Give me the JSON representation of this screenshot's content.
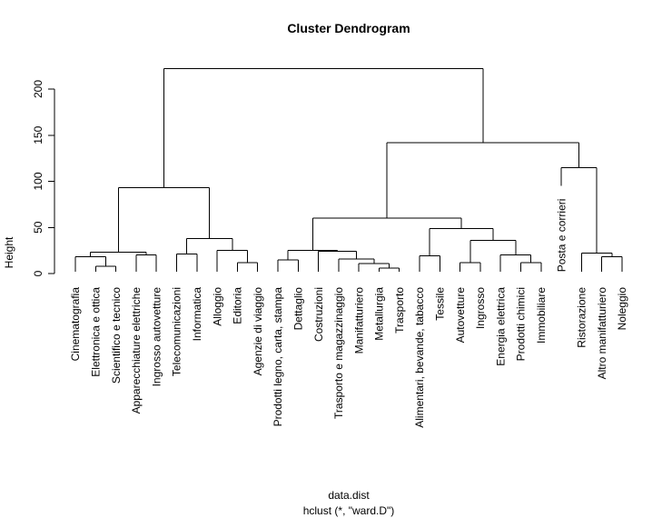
{
  "chart_data": {
    "type": "dendrogram",
    "title": "Cluster Dendrogram",
    "ylabel": "Height",
    "xlabel_lines": [
      "data.dist",
      "hclust (*, \"ward.D\")"
    ],
    "ylim": [
      0,
      230
    ],
    "yticks": [
      0,
      50,
      100,
      150,
      200
    ],
    "leaves": [
      "Cinematografia",
      "Elettronica e ottica",
      "Scientifico e tecnico",
      "Apparecchiature elettriche",
      "Ingrosso autovetture",
      "Telecomunicazioni",
      "Informatica",
      "Alloggio",
      "Editoria",
      "Agenzie di viaggio",
      "Prodotti legno, carta, stampa",
      "Dettaglio",
      "Costruzioni",
      "Trasporto e magazzinaggio",
      "Manifatturiero",
      "Metallurgia",
      "Trasporto",
      "Alimentari, bevande, tabacco",
      "Tessile",
      "Autovetture",
      "Ingrosso",
      "Energia elettrica",
      "Prodotti chimici",
      "Immobiliare",
      "Posta e corrieri",
      "Ristorazione",
      "Altro manifatturiero",
      "Noleggio"
    ],
    "merges": [
      {
        "a": "Scientifico e tecnico",
        "b": "Elettronica e ottica",
        "height": 8,
        "id": "n1"
      },
      {
        "a": "Cinematografia",
        "b": "n1",
        "height": 18,
        "id": "n2"
      },
      {
        "a": "Apparecchiature elettriche",
        "b": "Ingrosso autovetture",
        "height": 20,
        "id": "n3"
      },
      {
        "a": "n2",
        "b": "n3",
        "height": 23,
        "id": "n4"
      },
      {
        "a": "Telecomunicazioni",
        "b": "Informatica",
        "height": 21,
        "id": "n5"
      },
      {
        "a": "Editoria",
        "b": "Agenzie di viaggio",
        "height": 12,
        "id": "n6"
      },
      {
        "a": "Alloggio",
        "b": "n6",
        "height": 25,
        "id": "n7"
      },
      {
        "a": "n5",
        "b": "n7",
        "height": 38,
        "id": "n8"
      },
      {
        "a": "n4",
        "b": "n8",
        "height": 93,
        "id": "n9"
      },
      {
        "a": "Prodotti legno, carta, stampa",
        "b": "Dettaglio",
        "height": 15,
        "id": "n10"
      },
      {
        "a": "Metallurgia",
        "b": "Trasporto",
        "height": 6,
        "id": "n11"
      },
      {
        "a": "Manifatturiero",
        "b": "n11",
        "height": 11,
        "id": "n12"
      },
      {
        "a": "Trasporto e magazzinaggio",
        "b": "n12",
        "height": 16,
        "id": "n13"
      },
      {
        "a": "Costruzioni",
        "b": "n13",
        "height": 24,
        "id": "n14"
      },
      {
        "a": "n10",
        "b": "n14",
        "height": 25,
        "id": "n15"
      },
      {
        "a": "Alimentari, bevande, tabacco",
        "b": "Tessile",
        "height": 19,
        "id": "n16"
      },
      {
        "a": "Autovetture",
        "b": "Ingrosso",
        "height": 12,
        "id": "n17"
      },
      {
        "a": "Prodotti chimici",
        "b": "Immobiliare",
        "height": 12,
        "id": "n18"
      },
      {
        "a": "Energia elettrica",
        "b": "n18",
        "height": 20,
        "id": "n19"
      },
      {
        "a": "n17",
        "b": "n19",
        "height": 36,
        "id": "n20"
      },
      {
        "a": "n16",
        "b": "n20",
        "height": 49,
        "id": "n21"
      },
      {
        "a": "n15",
        "b": "n21",
        "height": 60,
        "id": "n22"
      },
      {
        "a": "Altro manifatturiero",
        "b": "Noleggio",
        "height": 18,
        "id": "n23"
      },
      {
        "a": "Ristorazione",
        "b": "n23",
        "height": 22,
        "id": "n24"
      },
      {
        "a": "Posta e corrieri",
        "b": "n24",
        "height": 115,
        "id": "n25"
      },
      {
        "a": "n22",
        "b": "n25",
        "height": 142,
        "id": "n26"
      },
      {
        "a": "n9",
        "b": "n26",
        "height": 222,
        "id": "n27"
      }
    ],
    "leaf_heights": {
      "Posta e corrieri": 95
    }
  }
}
